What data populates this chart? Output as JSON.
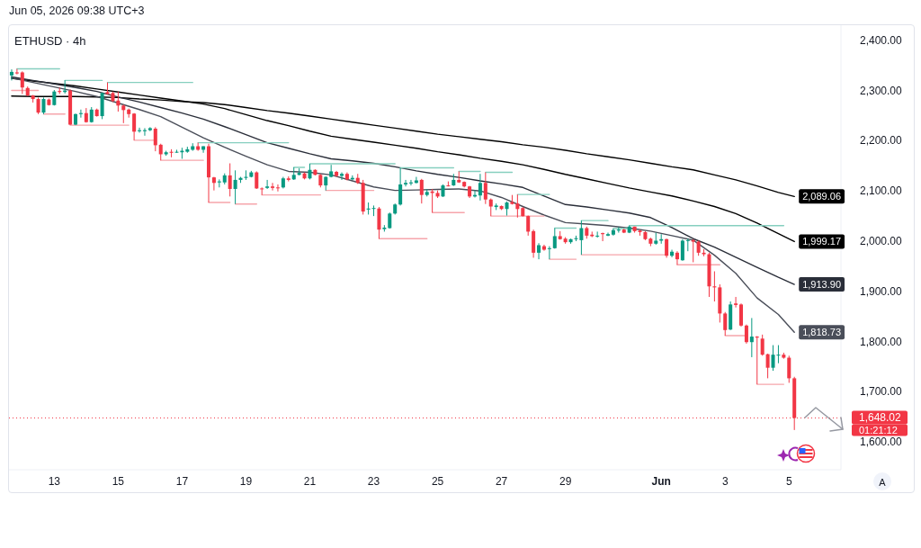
{
  "chart_data": {
    "type": "candlestick",
    "title": "ETHUSD · 4h",
    "annotations": [
      "Jun 05, 2026 09:38 UTC+3",
      "01:21:12",
      "A"
    ],
    "xlim": [
      "2026-05-11T17:00",
      "2026-06-06T18:00"
    ],
    "xticks": [
      {
        "value": "2026-05-13T03:00",
        "label": "13"
      },
      {
        "value": "2026-05-15T03:00",
        "label": "15"
      },
      {
        "value": "2026-05-17T03:00",
        "label": "17"
      },
      {
        "value": "2026-05-19T03:00",
        "label": "19"
      },
      {
        "value": "2026-05-21T03:00",
        "label": "21"
      },
      {
        "value": "2026-05-23T03:00",
        "label": "23"
      },
      {
        "value": "2026-05-25T03:00",
        "label": "25"
      },
      {
        "value": "2026-05-27T03:00",
        "label": "27"
      },
      {
        "value": "2026-05-29T03:00",
        "label": "29"
      },
      {
        "value": "2026-06-01T03:00",
        "label": "Jun"
      },
      {
        "value": "2026-06-03T03:00",
        "label": "3"
      },
      {
        "value": "2026-06-05T03:00",
        "label": "5"
      }
    ],
    "ylim": [
      1545,
      2430
    ],
    "yticks": [
      {
        "value": 1600,
        "label": "1,600.00"
      },
      {
        "value": 1700,
        "label": "1,700.00"
      },
      {
        "value": 1800,
        "label": "1,800.00"
      },
      {
        "value": 1900,
        "label": "1,900.00"
      },
      {
        "value": 2000,
        "label": "2,000.00"
      },
      {
        "value": 2100,
        "label": "2,100.00"
      },
      {
        "value": 2200,
        "label": "2,200.00"
      },
      {
        "value": 2300,
        "label": "2,300.00"
      },
      {
        "value": 2400,
        "label": "2,400.00"
      }
    ],
    "ref_lines": [
      {
        "axis": "y",
        "value": 1648.02,
        "label": "1,648.02",
        "color": "#f23645",
        "line_style": "dotted"
      }
    ],
    "x": [
      "2026-05-11T19:00",
      "2026-05-11T23:00",
      "2026-05-12T03:00",
      "2026-05-12T07:00",
      "2026-05-12T11:00",
      "2026-05-12T15:00",
      "2026-05-12T19:00",
      "2026-05-12T23:00",
      "2026-05-13T03:00",
      "2026-05-13T07:00",
      "2026-05-13T11:00",
      "2026-05-13T15:00",
      "2026-05-13T19:00",
      "2026-05-13T23:00",
      "2026-05-14T03:00",
      "2026-05-14T07:00",
      "2026-05-14T11:00",
      "2026-05-14T15:00",
      "2026-05-14T19:00",
      "2026-05-14T23:00",
      "2026-05-15T03:00",
      "2026-05-15T07:00",
      "2026-05-15T11:00",
      "2026-05-15T15:00",
      "2026-05-15T19:00",
      "2026-05-15T23:00",
      "2026-05-16T03:00",
      "2026-05-16T07:00",
      "2026-05-16T11:00",
      "2026-05-16T15:00",
      "2026-05-16T19:00",
      "2026-05-16T23:00",
      "2026-05-17T03:00",
      "2026-05-17T07:00",
      "2026-05-17T11:00",
      "2026-05-17T15:00",
      "2026-05-17T19:00",
      "2026-05-17T23:00",
      "2026-05-18T03:00",
      "2026-05-18T07:00",
      "2026-05-18T11:00",
      "2026-05-18T15:00",
      "2026-05-18T19:00",
      "2026-05-18T23:00",
      "2026-05-19T03:00",
      "2026-05-19T07:00",
      "2026-05-19T11:00",
      "2026-05-19T15:00",
      "2026-05-19T19:00",
      "2026-05-19T23:00",
      "2026-05-20T03:00",
      "2026-05-20T07:00",
      "2026-05-20T11:00",
      "2026-05-20T15:00",
      "2026-05-20T19:00",
      "2026-05-20T23:00",
      "2026-05-21T03:00",
      "2026-05-21T07:00",
      "2026-05-21T11:00",
      "2026-05-21T15:00",
      "2026-05-21T19:00",
      "2026-05-21T23:00",
      "2026-05-22T03:00",
      "2026-05-22T07:00",
      "2026-05-22T11:00",
      "2026-05-22T15:00",
      "2026-05-22T19:00",
      "2026-05-22T23:00",
      "2026-05-23T03:00",
      "2026-05-23T07:00",
      "2026-05-23T11:00",
      "2026-05-23T15:00",
      "2026-05-23T19:00",
      "2026-05-23T23:00",
      "2026-05-24T03:00",
      "2026-05-24T07:00",
      "2026-05-24T11:00",
      "2026-05-24T15:00",
      "2026-05-24T19:00",
      "2026-05-24T23:00",
      "2026-05-25T03:00",
      "2026-05-25T07:00",
      "2026-05-25T11:00",
      "2026-05-25T15:00",
      "2026-05-25T19:00",
      "2026-05-25T23:00",
      "2026-05-26T03:00",
      "2026-05-26T07:00",
      "2026-05-26T11:00",
      "2026-05-26T15:00",
      "2026-05-26T19:00",
      "2026-05-26T23:00",
      "2026-05-27T03:00",
      "2026-05-27T07:00",
      "2026-05-27T11:00",
      "2026-05-27T15:00",
      "2026-05-27T19:00",
      "2026-05-27T23:00",
      "2026-05-28T03:00",
      "2026-05-28T07:00",
      "2026-05-28T11:00",
      "2026-05-28T15:00",
      "2026-05-28T19:00",
      "2026-05-28T23:00",
      "2026-05-29T03:00",
      "2026-05-29T07:00",
      "2026-05-29T11:00",
      "2026-05-29T15:00",
      "2026-05-29T19:00",
      "2026-05-29T23:00",
      "2026-05-30T03:00",
      "2026-05-30T07:00",
      "2026-05-30T11:00",
      "2026-05-30T15:00",
      "2026-05-30T19:00",
      "2026-05-30T23:00",
      "2026-05-31T03:00",
      "2026-05-31T07:00",
      "2026-05-31T11:00",
      "2026-05-31T15:00",
      "2026-05-31T19:00",
      "2026-05-31T23:00",
      "2026-06-01T03:00",
      "2026-06-01T07:00",
      "2026-06-01T11:00",
      "2026-06-01T15:00",
      "2026-06-01T19:00",
      "2026-06-01T23:00",
      "2026-06-02T03:00",
      "2026-06-02T07:00",
      "2026-06-02T11:00",
      "2026-06-02T15:00",
      "2026-06-02T19:00",
      "2026-06-02T23:00",
      "2026-06-03T03:00",
      "2026-06-03T07:00",
      "2026-06-03T11:00",
      "2026-06-03T15:00",
      "2026-06-03T19:00",
      "2026-06-03T23:00",
      "2026-06-04T03:00",
      "2026-06-04T07:00",
      "2026-06-04T11:00",
      "2026-06-04T15:00",
      "2026-06-04T19:00",
      "2026-06-04T23:00",
      "2026-06-05T03:00",
      "2026-06-05T07:00"
    ],
    "ohlc": [
      [
        2330,
        2342,
        2320,
        2337
      ],
      [
        2336,
        2343,
        2332,
        2334
      ],
      [
        2336,
        2338,
        2293,
        2306
      ],
      [
        2305,
        2308,
        2289,
        2290
      ],
      [
        2290,
        2291,
        2276,
        2283
      ],
      [
        2283,
        2286,
        2253,
        2256
      ],
      [
        2256,
        2286,
        2253,
        2283
      ],
      [
        2282,
        2284,
        2270,
        2271
      ],
      [
        2271,
        2301,
        2270,
        2298
      ],
      [
        2299,
        2306,
        2293,
        2297
      ],
      [
        2297,
        2320,
        2294,
        2300
      ],
      [
        2300,
        2302,
        2231,
        2232
      ],
      [
        2232,
        2254,
        2231,
        2253
      ],
      [
        2253,
        2262,
        2246,
        2255
      ],
      [
        2255,
        2265,
        2236,
        2237
      ],
      [
        2237,
        2267,
        2236,
        2262
      ],
      [
        2262,
        2264,
        2248,
        2249
      ],
      [
        2249,
        2296,
        2243,
        2295
      ],
      [
        2297,
        2316,
        2292,
        2293
      ],
      [
        2295,
        2298,
        2277,
        2279
      ],
      [
        2280,
        2298,
        2258,
        2270
      ],
      [
        2270,
        2272,
        2235,
        2261
      ],
      [
        2262,
        2264,
        2246,
        2253
      ],
      [
        2254,
        2255,
        2201,
        2218
      ],
      [
        2219,
        2226,
        2216,
        2221
      ],
      [
        2219,
        2225,
        2210,
        2221
      ],
      [
        2221,
        2227,
        2219,
        2225
      ],
      [
        2224,
        2227,
        2179,
        2191
      ],
      [
        2192,
        2194,
        2161,
        2173
      ],
      [
        2173,
        2180,
        2170,
        2177
      ],
      [
        2178,
        2183,
        2167,
        2176
      ],
      [
        2177,
        2182,
        2176,
        2178
      ],
      [
        2177,
        2186,
        2164,
        2180
      ],
      [
        2178,
        2188,
        2176,
        2183
      ],
      [
        2182,
        2195,
        2180,
        2189
      ],
      [
        2189,
        2196,
        2180,
        2182
      ],
      [
        2182,
        2189,
        2176,
        2189
      ],
      [
        2189,
        2194,
        2077,
        2127
      ],
      [
        2127,
        2128,
        2101,
        2116
      ],
      [
        2117,
        2123,
        2107,
        2119
      ],
      [
        2117,
        2135,
        2113,
        2131
      ],
      [
        2131,
        2155,
        2089,
        2104
      ],
      [
        2104,
        2141,
        2074,
        2122
      ],
      [
        2122,
        2128,
        2116,
        2126
      ],
      [
        2126,
        2141,
        2122,
        2128
      ],
      [
        2128,
        2140,
        2127,
        2137
      ],
      [
        2137,
        2139,
        2104,
        2105
      ],
      [
        2105,
        2107,
        2092,
        2104
      ],
      [
        2106,
        2122,
        2104,
        2109
      ],
      [
        2109,
        2116,
        2101,
        2106
      ],
      [
        2107,
        2113,
        2099,
        2106
      ],
      [
        2107,
        2128,
        2105,
        2125
      ],
      [
        2125,
        2129,
        2119,
        2122
      ],
      [
        2123,
        2147,
        2122,
        2132
      ],
      [
        2132,
        2145,
        2131,
        2136
      ],
      [
        2135,
        2137,
        2123,
        2125
      ],
      [
        2125,
        2154,
        2123,
        2142
      ],
      [
        2142,
        2143,
        2131,
        2132
      ],
      [
        2132,
        2134,
        2107,
        2111
      ],
      [
        2111,
        2129,
        2101,
        2128
      ],
      [
        2128,
        2152,
        2127,
        2139
      ],
      [
        2138,
        2140,
        2128,
        2130
      ],
      [
        2130,
        2137,
        2122,
        2134
      ],
      [
        2134,
        2137,
        2121,
        2123
      ],
      [
        2123,
        2131,
        2122,
        2126
      ],
      [
        2126,
        2134,
        2114,
        2116
      ],
      [
        2116,
        2122,
        2053,
        2059
      ],
      [
        2063,
        2077,
        2053,
        2065
      ],
      [
        2065,
        2071,
        2050,
        2066
      ],
      [
        2065,
        2068,
        2005,
        2023
      ],
      [
        2024,
        2032,
        2019,
        2027
      ],
      [
        2026,
        2057,
        2025,
        2055
      ],
      [
        2055,
        2075,
        2053,
        2073
      ],
      [
        2073,
        2146,
        2071,
        2113
      ],
      [
        2113,
        2122,
        2109,
        2116
      ],
      [
        2115,
        2122,
        2111,
        2117
      ],
      [
        2116,
        2128,
        2115,
        2121
      ],
      [
        2122,
        2124,
        2075,
        2092
      ],
      [
        2092,
        2104,
        2089,
        2098
      ],
      [
        2099,
        2104,
        2057,
        2096
      ],
      [
        2096,
        2101,
        2086,
        2089
      ],
      [
        2089,
        2113,
        2088,
        2111
      ],
      [
        2111,
        2119,
        2109,
        2110
      ],
      [
        2111,
        2134,
        2110,
        2122
      ],
      [
        2122,
        2139,
        2116,
        2117
      ],
      [
        2118,
        2119,
        2107,
        2109
      ],
      [
        2109,
        2110,
        2086,
        2089
      ],
      [
        2089,
        2101,
        2087,
        2092
      ],
      [
        2091,
        2134,
        2081,
        2116
      ],
      [
        2116,
        2137,
        2074,
        2083
      ],
      [
        2083,
        2085,
        2050,
        2069
      ],
      [
        2068,
        2075,
        2062,
        2071
      ],
      [
        2070,
        2071,
        2062,
        2064
      ],
      [
        2064,
        2079,
        2051,
        2077
      ],
      [
        2078,
        2092,
        2073,
        2074
      ],
      [
        2075,
        2093,
        2047,
        2064
      ],
      [
        2066,
        2068,
        2049,
        2050
      ],
      [
        2050,
        2051,
        2011,
        2019
      ],
      [
        2020,
        2023,
        1967,
        1977
      ],
      [
        1977,
        1996,
        1964,
        1992
      ],
      [
        1990,
        1993,
        1981,
        1983
      ],
      [
        1985,
        1990,
        1964,
        1986
      ],
      [
        1986,
        2026,
        1985,
        2010
      ],
      [
        2010,
        2020,
        2003,
        2004
      ],
      [
        2005,
        2008,
        1995,
        1998
      ],
      [
        1998,
        2005,
        1995,
        2004
      ],
      [
        2004,
        2011,
        2000,
        2006
      ],
      [
        2002,
        2041,
        1973,
        2026
      ],
      [
        2026,
        2029,
        2005,
        2011
      ],
      [
        2013,
        2019,
        2008,
        2010
      ],
      [
        2010,
        2019,
        2007,
        2011
      ],
      [
        2016,
        2017,
        2000,
        2014
      ],
      [
        2011,
        2017,
        2010,
        2014
      ],
      [
        2013,
        2025,
        2011,
        2022
      ],
      [
        2021,
        2028,
        2017,
        2023
      ],
      [
        2023,
        2025,
        2016,
        2017
      ],
      [
        2017,
        2031,
        2016,
        2029
      ],
      [
        2029,
        2029,
        2017,
        2020
      ],
      [
        2021,
        2023,
        2011,
        2018
      ],
      [
        2018,
        2020,
        2002,
        2004
      ],
      [
        2005,
        2007,
        1990,
        1995
      ],
      [
        1995,
        2017,
        1993,
        2001
      ],
      [
        2001,
        2014,
        1995,
        2004
      ],
      [
        2004,
        2005,
        1967,
        1971
      ],
      [
        1971,
        1983,
        1968,
        1979
      ],
      [
        1977,
        1980,
        1953,
        1964
      ],
      [
        1962,
        2004,
        1961,
        2001
      ],
      [
        2001,
        2005,
        1980,
        2002
      ],
      [
        2002,
        2004,
        1958,
        1999
      ],
      [
        1999,
        2001,
        1971,
        1977
      ],
      [
        1977,
        1984,
        1970,
        1974
      ],
      [
        1974,
        1977,
        1889,
        1910
      ],
      [
        1910,
        1940,
        1880,
        1908
      ],
      [
        1908,
        1914,
        1838,
        1856
      ],
      [
        1856,
        1859,
        1812,
        1823
      ],
      [
        1824,
        1880,
        1823,
        1874
      ],
      [
        1876,
        1889,
        1868,
        1873
      ],
      [
        1874,
        1876,
        1830,
        1832
      ],
      [
        1832,
        1834,
        1796,
        1799
      ],
      [
        1799,
        1847,
        1769,
        1810
      ],
      [
        1810,
        1811,
        1715,
        1808
      ],
      [
        1806,
        1814,
        1772,
        1774
      ],
      [
        1775,
        1776,
        1727,
        1748
      ],
      [
        1748,
        1793,
        1742,
        1774
      ],
      [
        1773,
        1793,
        1757,
        1774
      ],
      [
        1774,
        1778,
        1766,
        1768
      ],
      [
        1768,
        1772,
        1718,
        1727
      ],
      [
        1727,
        1730,
        1624,
        1648.02
      ]
    ],
    "colors": [
      "#089981",
      "#f23645",
      "#f23645",
      "#f23645",
      "#f23645",
      "#f23645",
      "#089981",
      "#f23645",
      "#089981",
      "#f23645",
      "#089981",
      "#f23645",
      "#089981",
      "#089981",
      "#f23645",
      "#089981",
      "#f23645",
      "#089981",
      "#f23645",
      "#f23645",
      "#f23645",
      "#f23645",
      "#f23645",
      "#f23645",
      "#089981",
      "#089981",
      "#089981",
      "#f23645",
      "#f23645",
      "#089981",
      "#f23645",
      "#089981",
      "#089981",
      "#089981",
      "#089981",
      "#f23645",
      "#089981",
      "#f23645",
      "#f23645",
      "#089981",
      "#089981",
      "#f23645",
      "#089981",
      "#089981",
      "#089981",
      "#089981",
      "#f23645",
      "#f23645",
      "#089981",
      "#f23645",
      "#f23645",
      "#089981",
      "#f23645",
      "#089981",
      "#089981",
      "#f23645",
      "#089981",
      "#f23645",
      "#f23645",
      "#089981",
      "#089981",
      "#f23645",
      "#089981",
      "#f23645",
      "#089981",
      "#f23645",
      "#f23645",
      "#089981",
      "#089981",
      "#f23645",
      "#089981",
      "#089981",
      "#089981",
      "#089981",
      "#089981",
      "#089981",
      "#089981",
      "#f23645",
      "#089981",
      "#f23645",
      "#f23645",
      "#089981",
      "#f23645",
      "#089981",
      "#f23645",
      "#f23645",
      "#f23645",
      "#089981",
      "#089981",
      "#f23645",
      "#f23645",
      "#089981",
      "#f23645",
      "#089981",
      "#f23645",
      "#f23645",
      "#f23645",
      "#f23645",
      "#f23645",
      "#089981",
      "#f23645",
      "#089981",
      "#089981",
      "#f23645",
      "#f23645",
      "#089981",
      "#089981",
      "#089981",
      "#f23645",
      "#f23645",
      "#089981",
      "#f23645",
      "#089981",
      "#089981",
      "#089981",
      "#f23645",
      "#089981",
      "#f23645",
      "#f23645",
      "#f23645",
      "#f23645",
      "#089981",
      "#089981",
      "#f23645",
      "#089981",
      "#f23645",
      "#089981",
      "#089981",
      "#f23645",
      "#f23645",
      "#f23645",
      "#f23645",
      "#f23645",
      "#f23645",
      "#f23645",
      "#089981",
      "#f23645",
      "#f23645",
      "#f23645",
      "#089981",
      "#f23645",
      "#f23645",
      "#f23645",
      "#089981",
      "#089981",
      "#f23645",
      "#f23645",
      "#f23645"
    ],
    "series": [
      {
        "type": "line",
        "color": "#000000",
        "x": [
          "2026-05-11T19:00",
          "2026-05-12T11:00",
          "2026-05-13T03:00",
          "2026-05-13T19:00",
          "2026-05-14T11:00",
          "2026-05-15T03:00",
          "2026-05-15T19:00",
          "2026-05-16T11:00",
          "2026-05-17T03:00",
          "2026-05-17T19:00",
          "2026-05-18T11:00",
          "2026-05-19T03:00",
          "2026-05-19T19:00",
          "2026-05-20T11:00",
          "2026-05-21T03:00",
          "2026-05-21T19:00",
          "2026-05-22T11:00",
          "2026-05-23T03:00",
          "2026-05-23T19:00",
          "2026-05-24T11:00",
          "2026-05-25T03:00",
          "2026-05-25T19:00",
          "2026-05-26T11:00",
          "2026-05-27T03:00",
          "2026-05-27T19:00",
          "2026-05-28T11:00",
          "2026-05-29T03:00",
          "2026-05-29T19:00",
          "2026-05-30T11:00",
          "2026-05-31T03:00",
          "2026-05-31T19:00",
          "2026-06-01T11:00",
          "2026-06-02T03:00",
          "2026-06-02T19:00",
          "2026-06-03T11:00",
          "2026-06-04T03:00",
          "2026-06-04T19:00",
          "2026-06-05T07:00"
        ],
        "values": [
          2289,
          2288,
          2288,
          2288,
          2287,
          2286,
          2283,
          2281,
          2278,
          2276,
          2272,
          2266,
          2260,
          2255,
          2249,
          2243,
          2237,
          2231,
          2225,
          2219,
          2213,
          2208,
          2203,
          2198,
          2192,
          2187,
          2181,
          2174,
          2168,
          2162,
          2155,
          2148,
          2142,
          2132,
          2122,
          2110,
          2097,
          2089.06
        ],
        "value_labels": [
          null,
          null,
          null,
          null,
          null,
          null,
          null,
          null,
          null,
          null,
          null,
          null,
          null,
          null,
          null,
          null,
          null,
          null,
          null,
          null,
          null,
          null,
          null,
          null,
          null,
          null,
          null,
          null,
          null,
          null,
          null,
          null,
          null,
          null,
          null,
          null,
          null,
          "2,089.06"
        ]
      },
      {
        "type": "line",
        "color": "#000000",
        "x": [
          "2026-05-11T19:00",
          "2026-05-12T11:00",
          "2026-05-13T03:00",
          "2026-05-13T19:00",
          "2026-05-14T11:00",
          "2026-05-15T03:00",
          "2026-05-15T19:00",
          "2026-05-16T11:00",
          "2026-05-17T03:00",
          "2026-05-17T19:00",
          "2026-05-18T11:00",
          "2026-05-19T03:00",
          "2026-05-19T19:00",
          "2026-05-20T11:00",
          "2026-05-21T03:00",
          "2026-05-21T19:00",
          "2026-05-22T11:00",
          "2026-05-23T03:00",
          "2026-05-23T19:00",
          "2026-05-24T11:00",
          "2026-05-25T03:00",
          "2026-05-25T19:00",
          "2026-05-26T11:00",
          "2026-05-27T03:00",
          "2026-05-27T19:00",
          "2026-05-28T11:00",
          "2026-05-29T03:00",
          "2026-05-29T19:00",
          "2026-05-30T11:00",
          "2026-05-31T03:00",
          "2026-05-31T19:00",
          "2026-06-01T11:00",
          "2026-06-02T03:00",
          "2026-06-02T19:00",
          "2026-06-03T11:00",
          "2026-06-04T03:00",
          "2026-06-04T19:00",
          "2026-06-05T07:00"
        ],
        "values": [
          2324,
          2319,
          2314,
          2309,
          2303,
          2297,
          2291,
          2285,
          2279,
          2273,
          2264,
          2252,
          2240,
          2230,
          2219,
          2209,
          2203,
          2197,
          2191,
          2185,
          2178,
          2172,
          2165,
          2159,
          2152,
          2143,
          2133,
          2124,
          2115,
          2106,
          2098,
          2090,
          2080,
          2069,
          2055,
          2036,
          2015,
          1999.17
        ],
        "value_labels": [
          null,
          null,
          null,
          null,
          null,
          null,
          null,
          null,
          null,
          null,
          null,
          null,
          null,
          null,
          null,
          null,
          null,
          null,
          null,
          null,
          null,
          null,
          null,
          null,
          null,
          null,
          null,
          null,
          null,
          null,
          null,
          null,
          null,
          null,
          null,
          null,
          null,
          "1,999.17"
        ]
      },
      {
        "type": "line",
        "color": "#2a2e39",
        "x": [
          "2026-05-11T19:00",
          "2026-05-12T11:00",
          "2026-05-13T03:00",
          "2026-05-13T19:00",
          "2026-05-14T11:00",
          "2026-05-15T03:00",
          "2026-05-15T19:00",
          "2026-05-16T11:00",
          "2026-05-17T03:00",
          "2026-05-17T19:00",
          "2026-05-18T11:00",
          "2026-05-19T03:00",
          "2026-05-19T19:00",
          "2026-05-20T11:00",
          "2026-05-21T03:00",
          "2026-05-21T19:00",
          "2026-05-22T11:00",
          "2026-05-23T03:00",
          "2026-05-23T19:00",
          "2026-05-24T11:00",
          "2026-05-25T03:00",
          "2026-05-25T19:00",
          "2026-05-26T11:00",
          "2026-05-27T03:00",
          "2026-05-27T19:00",
          "2026-05-28T11:00",
          "2026-05-29T03:00",
          "2026-05-29T19:00",
          "2026-05-30T11:00",
          "2026-05-31T03:00",
          "2026-05-31T19:00",
          "2026-06-01T11:00",
          "2026-06-02T03:00",
          "2026-06-02T19:00",
          "2026-06-03T11:00",
          "2026-06-04T03:00",
          "2026-06-04T19:00",
          "2026-06-05T07:00"
        ],
        "values": [
          2327,
          2320,
          2313,
          2306,
          2298,
          2287,
          2277,
          2266,
          2255,
          2243,
          2228,
          2212,
          2196,
          2185,
          2174,
          2164,
          2160,
          2155,
          2148,
          2140,
          2133,
          2127,
          2120,
          2114,
          2107,
          2090,
          2073,
          2068,
          2062,
          2056,
          2047,
          2027,
          2005,
          1988,
          1968,
          1948,
          1928,
          1913.9
        ],
        "value_labels": [
          null,
          null,
          null,
          null,
          null,
          null,
          null,
          null,
          null,
          null,
          null,
          null,
          null,
          null,
          null,
          null,
          null,
          null,
          null,
          null,
          null,
          null,
          null,
          null,
          null,
          null,
          null,
          null,
          null,
          null,
          null,
          null,
          null,
          null,
          null,
          null,
          null,
          "1,913.90"
        ]
      },
      {
        "type": "line",
        "color": "#4a4e59",
        "x": [
          "2026-05-11T19:00",
          "2026-05-12T11:00",
          "2026-05-13T03:00",
          "2026-05-13T19:00",
          "2026-05-14T11:00",
          "2026-05-15T03:00",
          "2026-05-15T19:00",
          "2026-05-16T11:00",
          "2026-05-17T03:00",
          "2026-05-17T19:00",
          "2026-05-18T11:00",
          "2026-05-19T03:00",
          "2026-05-19T19:00",
          "2026-05-20T11:00",
          "2026-05-21T03:00",
          "2026-05-21T19:00",
          "2026-05-22T11:00",
          "2026-05-23T03:00",
          "2026-05-23T19:00",
          "2026-05-24T11:00",
          "2026-05-25T03:00",
          "2026-05-25T19:00",
          "2026-05-26T11:00",
          "2026-05-27T03:00",
          "2026-05-27T19:00",
          "2026-05-28T11:00",
          "2026-05-29T03:00",
          "2026-05-29T19:00",
          "2026-05-30T11:00",
          "2026-05-31T03:00",
          "2026-05-31T19:00",
          "2026-06-01T11:00",
          "2026-06-02T03:00",
          "2026-06-02T19:00",
          "2026-06-03T11:00",
          "2026-06-04T03:00",
          "2026-06-04T19:00",
          "2026-06-05T07:00"
        ],
        "values": [
          2325,
          2316,
          2307,
          2298,
          2288,
          2275,
          2262,
          2248,
          2227,
          2206,
          2187,
          2169,
          2152,
          2139,
          2137,
          2132,
          2120,
          2108,
          2101,
          2102,
          2103,
          2104,
          2100,
          2087,
          2069,
          2052,
          2037,
          2034,
          2031,
          2026,
          2020,
          2011,
          2002,
          1972,
          1936,
          1887,
          1854,
          1818.73
        ],
        "value_labels": [
          null,
          null,
          null,
          null,
          null,
          null,
          null,
          null,
          null,
          null,
          null,
          null,
          null,
          null,
          null,
          null,
          null,
          null,
          null,
          null,
          null,
          null,
          null,
          null,
          null,
          null,
          null,
          null,
          null,
          null,
          null,
          null,
          null,
          null,
          null,
          null,
          null,
          "1,818.73"
        ]
      },
      {
        "type": "line",
        "color": "#86cfbf",
        "x": [
          "2026-05-11T23:00",
          "2026-05-13T07:00"
        ],
        "values": [
          2343,
          2343
        ]
      },
      {
        "type": "line",
        "color": "#86cfbf",
        "x": [
          "2026-05-13T11:00",
          "2026-05-14T15:00"
        ],
        "values": [
          2320,
          2320
        ]
      },
      {
        "type": "line",
        "color": "#86cfbf",
        "x": [
          "2026-05-14T19:00",
          "2026-05-17T11:00"
        ],
        "values": [
          2316,
          2316
        ]
      },
      {
        "type": "line",
        "color": "#86cfbf",
        "x": [
          "2026-05-17T15:00",
          "2026-05-20T11:00"
        ],
        "values": [
          2196,
          2196
        ]
      },
      {
        "type": "line",
        "color": "#86cfbf",
        "x": [
          "2026-05-20T15:00",
          "2026-05-20T23:00"
        ],
        "values": [
          2147,
          2147
        ]
      },
      {
        "type": "line",
        "color": "#86cfbf",
        "x": [
          "2026-05-21T03:00",
          "2026-05-23T19:00"
        ],
        "values": [
          2154,
          2154
        ]
      },
      {
        "type": "line",
        "color": "#86cfbf",
        "x": [
          "2026-05-23T23:00",
          "2026-05-25T15:00"
        ],
        "values": [
          2146,
          2146
        ]
      },
      {
        "type": "line",
        "color": "#86cfbf",
        "x": [
          "2026-05-25T19:00",
          "2026-05-26T11:00"
        ],
        "values": [
          2139,
          2139
        ]
      },
      {
        "type": "line",
        "color": "#86cfbf",
        "x": [
          "2026-05-26T15:00",
          "2026-05-27T11:00"
        ],
        "values": [
          2137,
          2137
        ]
      },
      {
        "type": "line",
        "color": "#86cfbf",
        "x": [
          "2026-05-27T15:00",
          "2026-05-28T15:00"
        ],
        "values": [
          2093,
          2093
        ]
      },
      {
        "type": "line",
        "color": "#86cfbf",
        "x": [
          "2026-05-28T19:00",
          "2026-05-29T11:00"
        ],
        "values": [
          2026,
          2026
        ]
      },
      {
        "type": "line",
        "color": "#86cfbf",
        "x": [
          "2026-05-29T15:00",
          "2026-05-30T11:00"
        ],
        "values": [
          2041,
          2041
        ]
      },
      {
        "type": "line",
        "color": "#86cfbf",
        "x": [
          "2026-05-30T15:00",
          "2026-05-31T03:00"
        ],
        "values": [
          2025,
          2025
        ]
      },
      {
        "type": "line",
        "color": "#86cfbf",
        "x": [
          "2026-05-31T03:00",
          "2026-06-04T23:00"
        ],
        "values": [
          2031,
          2031
        ]
      },
      {
        "type": "line",
        "color": "#f6a5ab",
        "x": [
          "2026-05-11T19:00",
          "2026-05-12T15:00"
        ],
        "values": [
          2300,
          2300
        ]
      },
      {
        "type": "line",
        "color": "#f6a5ab",
        "x": [
          "2026-05-12T19:00",
          "2026-05-13T11:00"
        ],
        "values": [
          2253,
          2253
        ]
      },
      {
        "type": "line",
        "color": "#f6a5ab",
        "x": [
          "2026-05-13T15:00",
          "2026-05-15T11:00"
        ],
        "values": [
          2231,
          2231
        ]
      },
      {
        "type": "line",
        "color": "#f6a5ab",
        "x": [
          "2026-05-15T15:00",
          "2026-05-16T07:00"
        ],
        "values": [
          2201,
          2201
        ]
      },
      {
        "type": "line",
        "color": "#f6a5ab",
        "x": [
          "2026-05-16T11:00",
          "2026-05-17T19:00"
        ],
        "values": [
          2161,
          2161
        ]
      },
      {
        "type": "line",
        "color": "#f6a5ab",
        "x": [
          "2026-05-17T23:00",
          "2026-05-18T15:00"
        ],
        "values": [
          2077,
          2077
        ]
      },
      {
        "type": "line",
        "color": "#f6a5ab",
        "x": [
          "2026-05-18T19:00",
          "2026-05-19T11:00"
        ],
        "values": [
          2074,
          2074
        ]
      },
      {
        "type": "line",
        "color": "#f6a5ab",
        "x": [
          "2026-05-19T15:00",
          "2026-05-21T11:00"
        ],
        "values": [
          2092,
          2092
        ]
      },
      {
        "type": "line",
        "color": "#f6a5ab",
        "x": [
          "2026-05-21T15:00",
          "2026-05-23T03:00"
        ],
        "values": [
          2101,
          2101
        ]
      },
      {
        "type": "line",
        "color": "#f6a5ab",
        "x": [
          "2026-05-23T07:00",
          "2026-05-24T19:00"
        ],
        "values": [
          2005,
          2005
        ]
      },
      {
        "type": "line",
        "color": "#f6a5ab",
        "x": [
          "2026-05-24T23:00",
          "2026-05-25T23:00"
        ],
        "values": [
          2057,
          2057
        ]
      },
      {
        "type": "line",
        "color": "#f6a5ab",
        "x": [
          "2026-05-26T19:00",
          "2026-05-28T11:00"
        ],
        "values": [
          2050,
          2050
        ]
      },
      {
        "type": "line",
        "color": "#f6a5ab",
        "x": [
          "2026-05-28T15:00",
          "2026-05-29T11:00"
        ],
        "values": [
          1964,
          1964
        ]
      },
      {
        "type": "line",
        "color": "#f6a5ab",
        "x": [
          "2026-05-29T15:00",
          "2026-06-01T07:00"
        ],
        "values": [
          1973,
          1973
        ]
      },
      {
        "type": "line",
        "color": "#f6a5ab",
        "x": [
          "2026-06-01T15:00",
          "2026-06-02T23:00"
        ],
        "values": [
          1953,
          1953
        ]
      },
      {
        "type": "line",
        "color": "#f6a5ab",
        "x": [
          "2026-06-03T03:00",
          "2026-06-03T19:00"
        ],
        "values": [
          1812,
          1812
        ]
      },
      {
        "type": "line",
        "color": "#f6a5ab",
        "x": [
          "2026-06-04T03:00",
          "2026-06-04T23:00"
        ],
        "values": [
          1715,
          1715
        ]
      }
    ]
  }
}
